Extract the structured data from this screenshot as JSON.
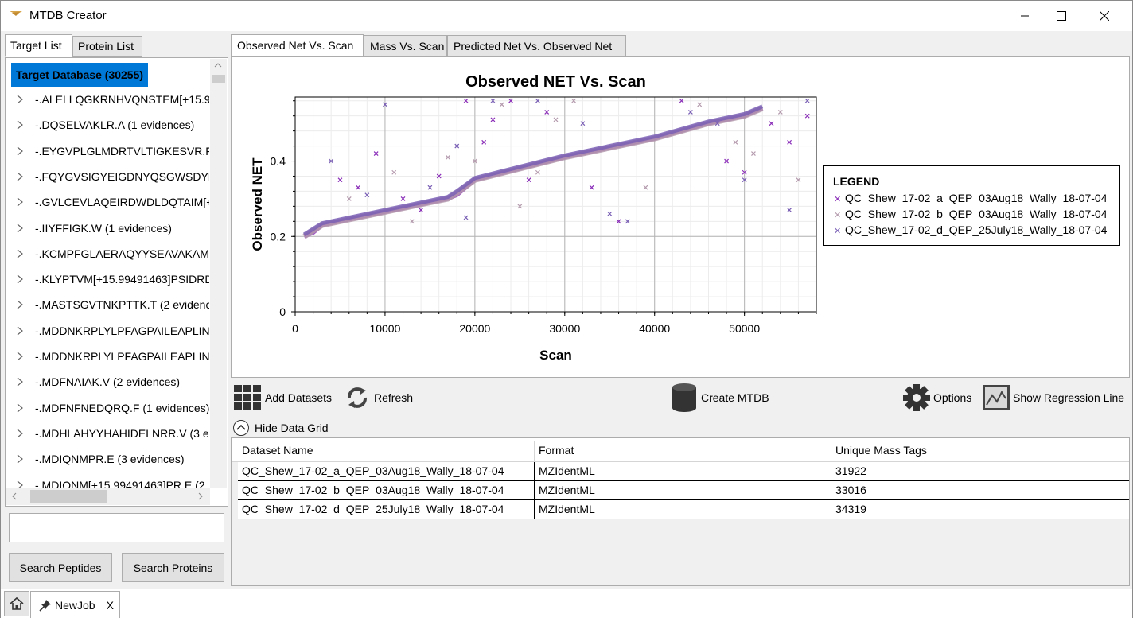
{
  "window": {
    "title": "MTDB Creator"
  },
  "left": {
    "tabs": [
      "Target List",
      "Protein List"
    ],
    "tree_root": "Target Database (30255)",
    "items": [
      "-.ALELLQGKRNHVQNSTEM[+15.9",
      "-.DQSELVAKLR.A (1 evidences)",
      "-.EYGVPLGLMDRTVLTIGKESVR.F (1",
      "-.FQYGVSIGYEIGDNYQSGWSDYHT",
      "-.GVLCEVLAQEIRDWDLDQTAIM[+",
      "-.IIYFFIGK.W (1 evidences)",
      "-.KCMPFGLAERAQYYSEAVAKAMT",
      "-.KLYPTVM[+15.99491463]PSIDRD",
      "-.MASTSGVTNKPTTK.T (2 evidenc",
      "-.MDDNKRPLYLPFAGPAILEAPLINK",
      "-.MDDNKRPLYLPFAGPAILEAPLINK",
      "-.MDFNAIAK.V (2 evidences)",
      "-.MDFNFNEDQRQ.F (1 evidences)",
      "-.MDHLAHYYHAHIDELNRR.V (3 e",
      "-.MDIQNMPR.E (3 evidences)",
      "-.MDIQNM[+15.99491463]PR.E (2"
    ],
    "search_value": "",
    "search_peptides": "Search Peptides",
    "search_proteins": "Search Proteins"
  },
  "tabs": [
    "Observed Net Vs. Scan",
    "Mass Vs. Scan",
    "Predicted Net Vs. Observed Net"
  ],
  "toolbar": {
    "add_datasets": "Add Datasets",
    "refresh": "Refresh",
    "create_mtdb": "Create MTDB",
    "options": "Options",
    "show_regression": "Show Regression Line",
    "hide_grid": "Hide Data Grid"
  },
  "grid": {
    "columns": [
      "Dataset Name",
      "Format",
      "Unique Mass Tags"
    ],
    "rows": [
      [
        "QC_Shew_17-02_a_QEP_03Aug18_Wally_18-07-04",
        "MZIdentML",
        "31922"
      ],
      [
        "QC_Shew_17-02_b_QEP_03Aug18_Wally_18-07-04",
        "MZIdentML",
        "33016"
      ],
      [
        "QC_Shew_17-02_d_QEP_25July18_Wally_18-07-04",
        "MZIdentML",
        "34319"
      ]
    ]
  },
  "bottom": {
    "job_tab": "NewJob",
    "close": "X"
  },
  "colors": {
    "series_a": "#8a2db8",
    "series_b": "#b49aad",
    "series_c": "#7a5fb5",
    "selection": "#0078d7"
  },
  "chart_data": {
    "type": "scatter",
    "title": "Observed NET Vs. Scan",
    "xlabel": "Scan",
    "ylabel": "Observed NET",
    "xlim": [
      0,
      58000
    ],
    "ylim": [
      0,
      0.57
    ],
    "xticks": [
      0,
      10000,
      20000,
      30000,
      40000,
      50000
    ],
    "yticks": [
      0,
      0.2,
      0.4
    ],
    "grid": true,
    "legend_title": "LEGEND",
    "legend_position": "right",
    "series": [
      {
        "name": "QC_Shew_17-02_a_QEP_03Aug18_Wally_18-07-04",
        "marker": "x",
        "trend": [
          [
            1000,
            0.2
          ],
          [
            2000,
            0.21
          ],
          [
            3000,
            0.23
          ],
          [
            8000,
            0.255
          ],
          [
            15000,
            0.29
          ],
          [
            17000,
            0.3
          ],
          [
            18000,
            0.31
          ],
          [
            20000,
            0.35
          ],
          [
            30000,
            0.41
          ],
          [
            40000,
            0.46
          ],
          [
            46000,
            0.5
          ],
          [
            50000,
            0.52
          ],
          [
            52000,
            0.54
          ]
        ],
        "scatter": [
          [
            5000,
            0.35
          ],
          [
            9000,
            0.42
          ],
          [
            12000,
            0.3
          ],
          [
            16000,
            0.36
          ],
          [
            21000,
            0.45
          ],
          [
            24000,
            0.56
          ],
          [
            28000,
            0.53
          ],
          [
            33000,
            0.33
          ],
          [
            43000,
            0.56
          ],
          [
            48000,
            0.4
          ],
          [
            50000,
            0.37
          ],
          [
            55000,
            0.45
          ],
          [
            57000,
            0.52
          ],
          [
            36000,
            0.24
          ],
          [
            14000,
            0.27
          ],
          [
            7000,
            0.33
          ],
          [
            26000,
            0.35
          ],
          [
            19000,
            0.56
          ],
          [
            22000,
            0.51
          ],
          [
            53000,
            0.5
          ]
        ]
      },
      {
        "name": "QC_Shew_17-02_b_QEP_03Aug18_Wally_18-07-04",
        "marker": "x",
        "trend": [
          [
            1000,
            0.2
          ],
          [
            2000,
            0.215
          ],
          [
            3000,
            0.23
          ],
          [
            8000,
            0.255
          ],
          [
            15000,
            0.29
          ],
          [
            17000,
            0.3
          ],
          [
            18000,
            0.315
          ],
          [
            20000,
            0.35
          ],
          [
            30000,
            0.41
          ],
          [
            40000,
            0.46
          ],
          [
            46000,
            0.5
          ],
          [
            50000,
            0.52
          ],
          [
            52000,
            0.54
          ]
        ],
        "scatter": [
          [
            6000,
            0.3
          ],
          [
            11000,
            0.37
          ],
          [
            17000,
            0.41
          ],
          [
            23000,
            0.55
          ],
          [
            27000,
            0.37
          ],
          [
            31000,
            0.56
          ],
          [
            45000,
            0.55
          ],
          [
            49000,
            0.45
          ],
          [
            51000,
            0.42
          ],
          [
            54000,
            0.53
          ],
          [
            56000,
            0.35
          ],
          [
            20000,
            0.4
          ],
          [
            25000,
            0.28
          ],
          [
            39000,
            0.33
          ],
          [
            13000,
            0.24
          ],
          [
            29000,
            0.51
          ]
        ]
      },
      {
        "name": "QC_Shew_17-02_d_QEP_25July18_Wally_18-07-04",
        "marker": "x",
        "trend": [
          [
            1000,
            0.205
          ],
          [
            2000,
            0.22
          ],
          [
            3000,
            0.235
          ],
          [
            8000,
            0.26
          ],
          [
            15000,
            0.295
          ],
          [
            17000,
            0.305
          ],
          [
            18000,
            0.32
          ],
          [
            20000,
            0.355
          ],
          [
            30000,
            0.415
          ],
          [
            40000,
            0.465
          ],
          [
            46000,
            0.505
          ],
          [
            50000,
            0.525
          ],
          [
            52000,
            0.545
          ]
        ],
        "scatter": [
          [
            10000,
            0.55
          ],
          [
            4000,
            0.4
          ],
          [
            8000,
            0.31
          ],
          [
            15000,
            0.33
          ],
          [
            18000,
            0.44
          ],
          [
            22000,
            0.56
          ],
          [
            27000,
            0.56
          ],
          [
            35000,
            0.26
          ],
          [
            37000,
            0.24
          ],
          [
            47000,
            0.5
          ],
          [
            50000,
            0.35
          ],
          [
            55000,
            0.27
          ],
          [
            57000,
            0.56
          ],
          [
            32000,
            0.5
          ],
          [
            44000,
            0.53
          ],
          [
            19000,
            0.25
          ]
        ]
      }
    ]
  }
}
